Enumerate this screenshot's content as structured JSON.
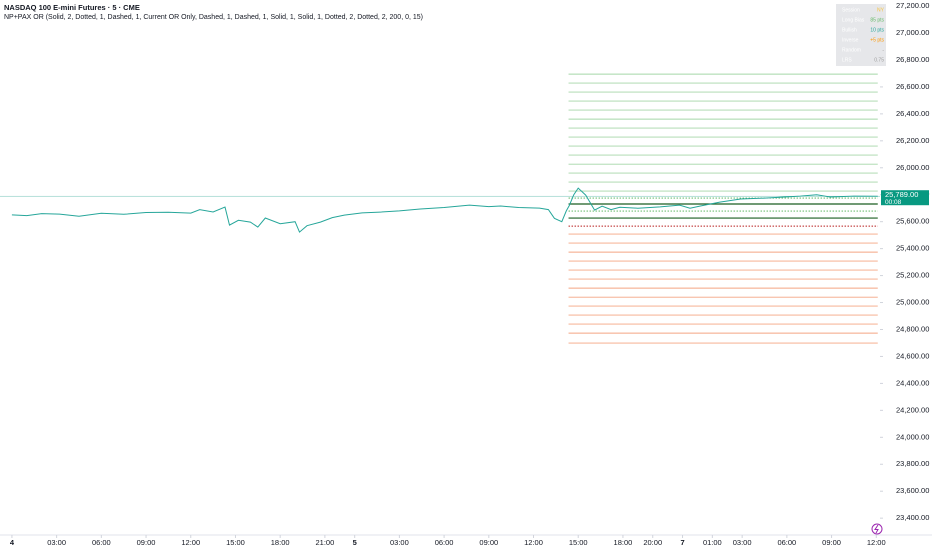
{
  "chart_data": {
    "type": "line",
    "title": "NASDAQ 100 E-mini Futures · 5 · CME",
    "subtitle": "NP+PAX OR (Solid, 2, Dotted, 1, Dashed, 1, Current OR Only, Dashed, 1, Dashed, 1, Solid, 1, Solid, 1, Dotted, 2, Dotted, 2, 200, 0, 15)",
    "xlim": [
      -0.8,
      58.25
    ],
    "ylim": [
      23275,
      27245
    ],
    "xticks": [
      {
        "value": 0,
        "label": "4",
        "bold": true
      },
      {
        "value": 3,
        "label": "03:00"
      },
      {
        "value": 6,
        "label": "06:00"
      },
      {
        "value": 9,
        "label": "09:00"
      },
      {
        "value": 12,
        "label": "12:00"
      },
      {
        "value": 15,
        "label": "15:00"
      },
      {
        "value": 18,
        "label": "18:00"
      },
      {
        "value": 21,
        "label": "21:00"
      },
      {
        "value": 23,
        "label": "5",
        "bold": true
      },
      {
        "value": 26,
        "label": "03:00"
      },
      {
        "value": 29,
        "label": "06:00"
      },
      {
        "value": 32,
        "label": "09:00"
      },
      {
        "value": 35,
        "label": "12:00"
      },
      {
        "value": 38,
        "label": "15:00"
      },
      {
        "value": 41,
        "label": "18:00"
      },
      {
        "value": 43,
        "label": "20:00"
      },
      {
        "value": 45,
        "label": "7",
        "bold": true
      },
      {
        "value": 47,
        "label": "01:00"
      },
      {
        "value": 49,
        "label": "03:00"
      },
      {
        "value": 52,
        "label": "06:00"
      },
      {
        "value": 55,
        "label": "09:00"
      },
      {
        "value": 58,
        "label": "12:00"
      }
    ],
    "yticks": [
      {
        "value": 23400,
        "label": "23,400.00"
      },
      {
        "value": 23600,
        "label": "23,600.00"
      },
      {
        "value": 23800,
        "label": "23,800.00"
      },
      {
        "value": 24000,
        "label": "24,000.00"
      },
      {
        "value": 24200,
        "label": "24,200.00"
      },
      {
        "value": 24400,
        "label": "24,400.00"
      },
      {
        "value": 24600,
        "label": "24,600.00"
      },
      {
        "value": 24800,
        "label": "24,800.00"
      },
      {
        "value": 25000,
        "label": "25,000.00"
      },
      {
        "value": 25200,
        "label": "25,200.00"
      },
      {
        "value": 25400,
        "label": "25,400.00"
      },
      {
        "value": 25600,
        "label": "25,600.00"
      },
      {
        "value": 25800,
        "label": "25,800.00"
      },
      {
        "value": 26000,
        "label": "26,000.00"
      },
      {
        "value": 26200,
        "label": "26,200.00"
      },
      {
        "value": 26400,
        "label": "26,400.00"
      },
      {
        "value": 26600,
        "label": "26,600.00"
      },
      {
        "value": 26800,
        "label": "26,800.00"
      },
      {
        "value": 27000,
        "label": "27,000.00"
      },
      {
        "value": 27200,
        "label": "27,200.00"
      }
    ],
    "series": [
      {
        "color": "#26a69a",
        "x": [
          0,
          1,
          2,
          3.2,
          4.5,
          6,
          7.5,
          9,
          10.5,
          12,
          12.6,
          13.5,
          14.3,
          14.45,
          14.6,
          15.2,
          16,
          16.5,
          17,
          18,
          19,
          19.3,
          19.8,
          20.7,
          21.5,
          22.3,
          23.5,
          24.7,
          26,
          27.4,
          29,
          30.7,
          32,
          32.8,
          34,
          35.4,
          36,
          36.4,
          36.9,
          37.2,
          37.4,
          37.7,
          38,
          38.5,
          39.1,
          39.6,
          40.2,
          40.8,
          42,
          43.5,
          44.8,
          45.5,
          46.2,
          47.5,
          48.9,
          50.5,
          52.9,
          54,
          54.9,
          56.5,
          58.1
        ],
        "values": [
          25650,
          25645,
          25660,
          25656,
          25640,
          25662,
          25655,
          25668,
          25670,
          25664,
          25690,
          25672,
          25708,
          25640,
          25575,
          25610,
          25597,
          25560,
          25627,
          25585,
          25600,
          25523,
          25570,
          25597,
          25630,
          25649,
          25665,
          25671,
          25680,
          25694,
          25705,
          25723,
          25712,
          25716,
          25705,
          25701,
          25690,
          25625,
          25600,
          25680,
          25720,
          25800,
          25849,
          25797,
          25686,
          25715,
          25690,
          25707,
          25700,
          25710,
          25723,
          25700,
          25716,
          25745,
          25768,
          25775,
          25790,
          25800,
          25783,
          25790,
          25789
        ]
      }
    ],
    "level_range": [
      37.35,
      58.1
    ],
    "levels": [
      {
        "value": 26695,
        "color": "#a5d6a7",
        "style": "solid"
      },
      {
        "value": 26629,
        "color": "#a5d6a7",
        "style": "solid"
      },
      {
        "value": 26562,
        "color": "#a5d6a7",
        "style": "solid"
      },
      {
        "value": 26495,
        "color": "#a5d6a7",
        "style": "solid"
      },
      {
        "value": 26428,
        "color": "#a5d6a7",
        "style": "solid"
      },
      {
        "value": 26361,
        "color": "#a5d6a7",
        "style": "solid"
      },
      {
        "value": 26295,
        "color": "#a5d6a7",
        "style": "solid"
      },
      {
        "value": 26228,
        "color": "#a5d6a7",
        "style": "solid"
      },
      {
        "value": 26161,
        "color": "#a5d6a7",
        "style": "solid"
      },
      {
        "value": 26094,
        "color": "#a5d6a7",
        "style": "solid"
      },
      {
        "value": 26027,
        "color": "#a5d6a7",
        "style": "solid"
      },
      {
        "value": 25961,
        "color": "#a5d6a7",
        "style": "solid"
      },
      {
        "value": 25894,
        "color": "#a5d6a7",
        "style": "solid"
      },
      {
        "value": 25827,
        "color": "#a5d6a7",
        "style": "solid"
      },
      {
        "value": 25775,
        "color": "#4caf50",
        "style": "dotted"
      },
      {
        "value": 25731,
        "color": "#1b5e20",
        "style": "solid"
      },
      {
        "value": 25679,
        "color": "#4caf50",
        "style": "dotted"
      },
      {
        "value": 25627,
        "color": "#1b5e20",
        "style": "solid"
      },
      {
        "value": 25567,
        "color": "#b71c1c",
        "style": "dotted"
      },
      {
        "value": 25508,
        "color": "#f4a582",
        "style": "solid"
      },
      {
        "value": 25441,
        "color": "#f4a582",
        "style": "solid"
      },
      {
        "value": 25374,
        "color": "#f4a582",
        "style": "solid"
      },
      {
        "value": 25308,
        "color": "#f4a582",
        "style": "solid"
      },
      {
        "value": 25241,
        "color": "#f4a582",
        "style": "solid"
      },
      {
        "value": 25174,
        "color": "#f4a582",
        "style": "solid"
      },
      {
        "value": 25107,
        "color": "#f4a582",
        "style": "solid"
      },
      {
        "value": 25040,
        "color": "#f4a582",
        "style": "solid"
      },
      {
        "value": 24974,
        "color": "#f4a582",
        "style": "solid"
      },
      {
        "value": 24907,
        "color": "#f4a582",
        "style": "solid"
      },
      {
        "value": 24840,
        "color": "#f4a582",
        "style": "solid"
      },
      {
        "value": 24773,
        "color": "#f4a582",
        "style": "solid"
      },
      {
        "value": 24699,
        "color": "#f4a582",
        "style": "solid"
      }
    ],
    "last_price": {
      "value": 25789,
      "label": "25,789.00",
      "countdown": "00:08",
      "color": "#089981"
    },
    "info_table": [
      [
        "Session",
        "NY"
      ],
      [
        "Long Bias",
        "85 pts"
      ],
      [
        "Bullish",
        "10 pts"
      ],
      [
        "Inverse",
        "+5 pts"
      ],
      [
        "Random",
        "-"
      ],
      [
        "LRS",
        "0.75"
      ]
    ]
  }
}
